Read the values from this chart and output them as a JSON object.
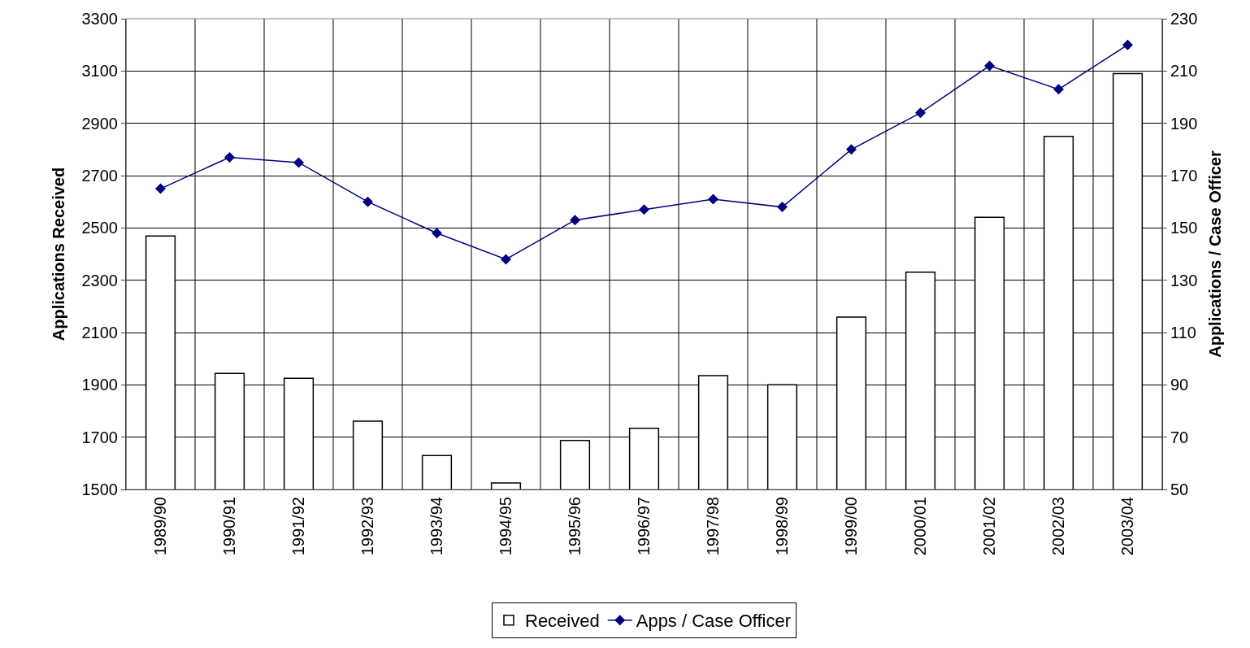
{
  "chart_data": {
    "type": "bar",
    "ylabel": "Applications Received",
    "y2label": "Applications / Case Officer",
    "categories": [
      "1989/90",
      "1990/91",
      "1991/92",
      "1992/93",
      "1993/94",
      "1994/95",
      "1995/96",
      "1996/97",
      "1997/98",
      "1998/99",
      "1999/00",
      "2000/01",
      "2001/02",
      "2002/03",
      "2003/04"
    ],
    "series": [
      {
        "name": "Received",
        "color": "#ffffff",
        "values": [
          2469,
          1944,
          1925,
          1761,
          1630,
          1525,
          1687,
          1734,
          1935,
          1900,
          2159,
          2331,
          2541,
          2850,
          3090
        ]
      },
      {
        "name": "Apps / Case Officer",
        "type": "line",
        "axis": "y2",
        "color": "#000080",
        "marker": "diamond",
        "values": [
          165,
          177,
          175,
          160,
          148,
          138,
          153,
          157,
          161,
          158,
          180,
          194,
          212,
          203,
          220
        ]
      }
    ],
    "ylim": [
      1500,
      3300
    ],
    "yticks": [
      1500,
      1700,
      1900,
      2100,
      2300,
      2500,
      2700,
      2900,
      3100,
      3300
    ],
    "y2lim": [
      50,
      230
    ],
    "y2ticks": [
      50,
      70,
      90,
      110,
      130,
      150,
      170,
      190,
      210,
      230
    ],
    "grid": true,
    "legend": "bottom"
  }
}
